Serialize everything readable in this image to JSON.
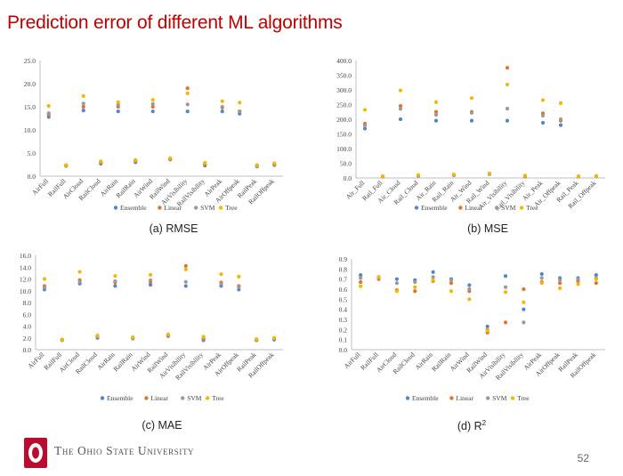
{
  "slide": {
    "title": "Prediction error of different ML algorithms",
    "footer_text": "The Ohio State University",
    "page_number": "52"
  },
  "colors": {
    "title": "#c00000",
    "Ensemble": "#4f87c9",
    "Linear": "#e8702a",
    "SVM": "#9a9a9a",
    "Tree": "#f5b800",
    "logo_red": "#ba0c2f"
  },
  "chart_data": [
    {
      "type": "scatter",
      "caption": "(a) RMSE",
      "categories": [
        "AirFull",
        "RailFull",
        "AirCloud",
        "RailCloud",
        "AirRain",
        "RailRain",
        "AirWind",
        "RailWind",
        "AirVisibility",
        "RailVisibility",
        "AirPeak",
        "AirOffpeak",
        "RailPeak",
        "RailOffpeak"
      ],
      "ylim": [
        0,
        25
      ],
      "ytick_labels": [
        "0.0",
        "5.0",
        "10.0",
        "15.0",
        "20.0",
        "25.0"
      ],
      "legend": "bottom",
      "series": [
        {
          "name": "Ensemble",
          "values": [
            12.8,
            2.2,
            14.2,
            2.7,
            14.0,
            3.0,
            14.0,
            3.6,
            14.0,
            2.3,
            14.0,
            13.5,
            2.1,
            2.4
          ]
        },
        {
          "name": "Linear",
          "values": [
            13.3,
            2.3,
            15.0,
            2.9,
            15.0,
            3.2,
            15.0,
            3.7,
            19.0,
            2.5,
            14.8,
            14.0,
            2.2,
            2.5
          ]
        },
        {
          "name": "SVM",
          "values": [
            13.6,
            2.3,
            15.7,
            3.0,
            15.4,
            3.3,
            15.6,
            3.8,
            15.5,
            2.7,
            15.0,
            14.0,
            2.2,
            2.6
          ]
        },
        {
          "name": "Tree",
          "values": [
            15.2,
            2.4,
            17.3,
            3.2,
            16.0,
            3.5,
            16.5,
            3.9,
            17.9,
            2.9,
            16.2,
            15.9,
            2.4,
            2.8
          ]
        }
      ]
    },
    {
      "type": "scatter",
      "caption": "(b) MSE",
      "categories": [
        "Air_Full",
        "Rail_Full",
        "Air_Cloud",
        "Rail_Cloud",
        "Air_Rain",
        "Rail_Rain",
        "Air_Wind",
        "Rail_Wind",
        "Air_Visibility",
        "Rail_Visibility",
        "Air_Peak",
        "Air_Offpeak",
        "Rail_Peak",
        "Rail_Offpeak"
      ],
      "ylim": [
        0,
        400
      ],
      "ytick_labels": [
        "0.0",
        "50.0",
        "100.0",
        "150.0",
        "200.0",
        "250.0",
        "300.0",
        "350.0",
        "400.0"
      ],
      "legend": "bottom",
      "series": [
        {
          "name": "Ensemble",
          "values": [
            168,
            5,
            200,
            7,
            195,
            9,
            195,
            13,
            195,
            5,
            188,
            180,
            5,
            6
          ]
        },
        {
          "name": "Linear",
          "values": [
            185,
            5,
            245,
            8,
            225,
            10,
            225,
            14,
            375,
            6,
            220,
            195,
            5,
            6
          ]
        },
        {
          "name": "SVM",
          "values": [
            178,
            5,
            235,
            8,
            215,
            10,
            222,
            14,
            236,
            7,
            212,
            200,
            5,
            6
          ]
        },
        {
          "name": "Tree",
          "values": [
            232,
            6,
            298,
            10,
            258,
            12,
            272,
            15,
            318,
            8,
            265,
            255,
            6,
            7
          ]
        }
      ]
    },
    {
      "type": "scatter",
      "caption": "(c) MAE",
      "categories": [
        "AirFull",
        "RailFull",
        "AirCloud",
        "RailCloud",
        "AirRain",
        "RailRain",
        "AirWind",
        "RailWind",
        "AirVisibility",
        "RailVisibility",
        "AirPeak",
        "AirOffpeak",
        "RailPeak",
        "RailOffpeak"
      ],
      "ylim": [
        0,
        16
      ],
      "ytick_labels": [
        "0.0",
        "2.0",
        "4.0",
        "6.0",
        "8.0",
        "10.0",
        "12.0",
        "14.0",
        "16.0"
      ],
      "legend": "bottom",
      "series": [
        {
          "name": "Ensemble",
          "values": [
            10.2,
            1.6,
            11.2,
            2.0,
            10.8,
            1.9,
            11.0,
            2.3,
            10.8,
            1.6,
            10.8,
            10.2,
            1.6,
            1.7
          ]
        },
        {
          "name": "Linear",
          "values": [
            10.8,
            1.7,
            11.8,
            2.3,
            11.4,
            2.0,
            11.5,
            2.4,
            14.2,
            1.8,
            11.4,
            10.8,
            1.6,
            1.9
          ]
        },
        {
          "name": "SVM",
          "values": [
            10.5,
            1.7,
            11.5,
            2.2,
            11.6,
            2.0,
            11.8,
            2.4,
            11.5,
            2.0,
            11.2,
            10.6,
            1.7,
            1.9
          ]
        },
        {
          "name": "Tree",
          "values": [
            12.0,
            1.7,
            13.2,
            2.4,
            12.5,
            2.1,
            12.7,
            2.6,
            13.6,
            2.2,
            12.8,
            12.4,
            1.8,
            2.0
          ]
        }
      ]
    },
    {
      "type": "scatter",
      "caption": "(d) R",
      "caption_sup": "2",
      "categories": [
        "AirFull",
        "RailFull",
        "AirCloud",
        "RailCloud",
        "AirRain",
        "RailRain",
        "AirWind",
        "RailWind",
        "AirVisibility",
        "RailVisibility",
        "AirPeak",
        "AirOffpeak",
        "RailPeak",
        "RailOffpeak"
      ],
      "ylim": [
        0,
        0.9
      ],
      "ytick_labels": [
        "0.0",
        "0.1",
        "0.2",
        "0.3",
        "0.4",
        "0.5",
        "0.6",
        "0.7",
        "0.8",
        "0.9"
      ],
      "legend": "bottom",
      "series": [
        {
          "name": "Ensemble",
          "values": [
            0.74,
            0.72,
            0.7,
            0.69,
            0.77,
            0.7,
            0.64,
            0.23,
            0.73,
            0.4,
            0.75,
            0.71,
            0.71,
            0.74
          ]
        },
        {
          "name": "Linear",
          "values": [
            0.67,
            0.7,
            0.59,
            0.58,
            0.68,
            0.66,
            0.58,
            0.17,
            0.27,
            0.6,
            0.67,
            0.66,
            0.68,
            0.66
          ]
        },
        {
          "name": "SVM",
          "values": [
            0.71,
            0.71,
            0.66,
            0.67,
            0.72,
            0.69,
            0.6,
            0.2,
            0.62,
            0.27,
            0.71,
            0.69,
            0.7,
            0.71
          ]
        },
        {
          "name": "Tree",
          "values": [
            0.63,
            0.72,
            0.58,
            0.62,
            0.69,
            0.58,
            0.5,
            0.19,
            0.57,
            0.47,
            0.66,
            0.61,
            0.65,
            0.7
          ]
        }
      ]
    }
  ]
}
